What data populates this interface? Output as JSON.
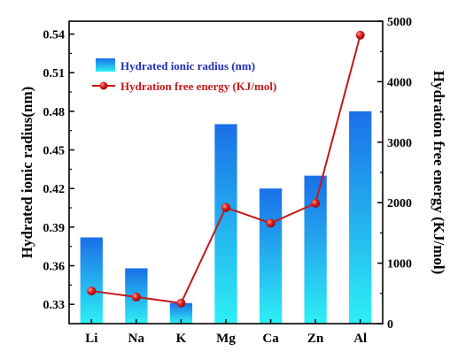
{
  "chart_data": {
    "type": "bar",
    "categories": [
      "Li",
      "Na",
      "K",
      "Mg",
      "Ca",
      "Zn",
      "Al"
    ],
    "series": [
      {
        "name": "Hydrated ionic radius (nm)",
        "type": "bar",
        "axis": "left",
        "values": [
          0.382,
          0.358,
          0.331,
          0.47,
          0.42,
          0.43,
          0.48
        ]
      },
      {
        "name": "Hydration free energy (KJ/mol)",
        "type": "line",
        "axis": "right",
        "values": [
          540,
          440,
          340,
          1920,
          1660,
          1990,
          4770
        ]
      }
    ],
    "ylabel_left": "Hydrated ionic radius(nm)",
    "ylabel_right": "Hydration free energy (KJ/mol)",
    "ylim_left": [
      0.315,
      0.55
    ],
    "yticks_left": [
      "0.33",
      "0.36",
      "0.39",
      "0.42",
      "0.45",
      "0.48",
      "0.51",
      "0.54"
    ],
    "ylim_right": [
      0,
      5000
    ],
    "yticks_right": [
      "0",
      "1000",
      "2000",
      "3000",
      "4000",
      "5000"
    ],
    "legend_position": "top-left",
    "grid": false,
    "colors": {
      "bar_top": "#1a6fe8",
      "bar_bottom": "#2ef0f5",
      "line": "#c41818",
      "marker": "#d42020",
      "legend_text": "#1f2fb8",
      "legend_text_line": "#c41818"
    }
  }
}
